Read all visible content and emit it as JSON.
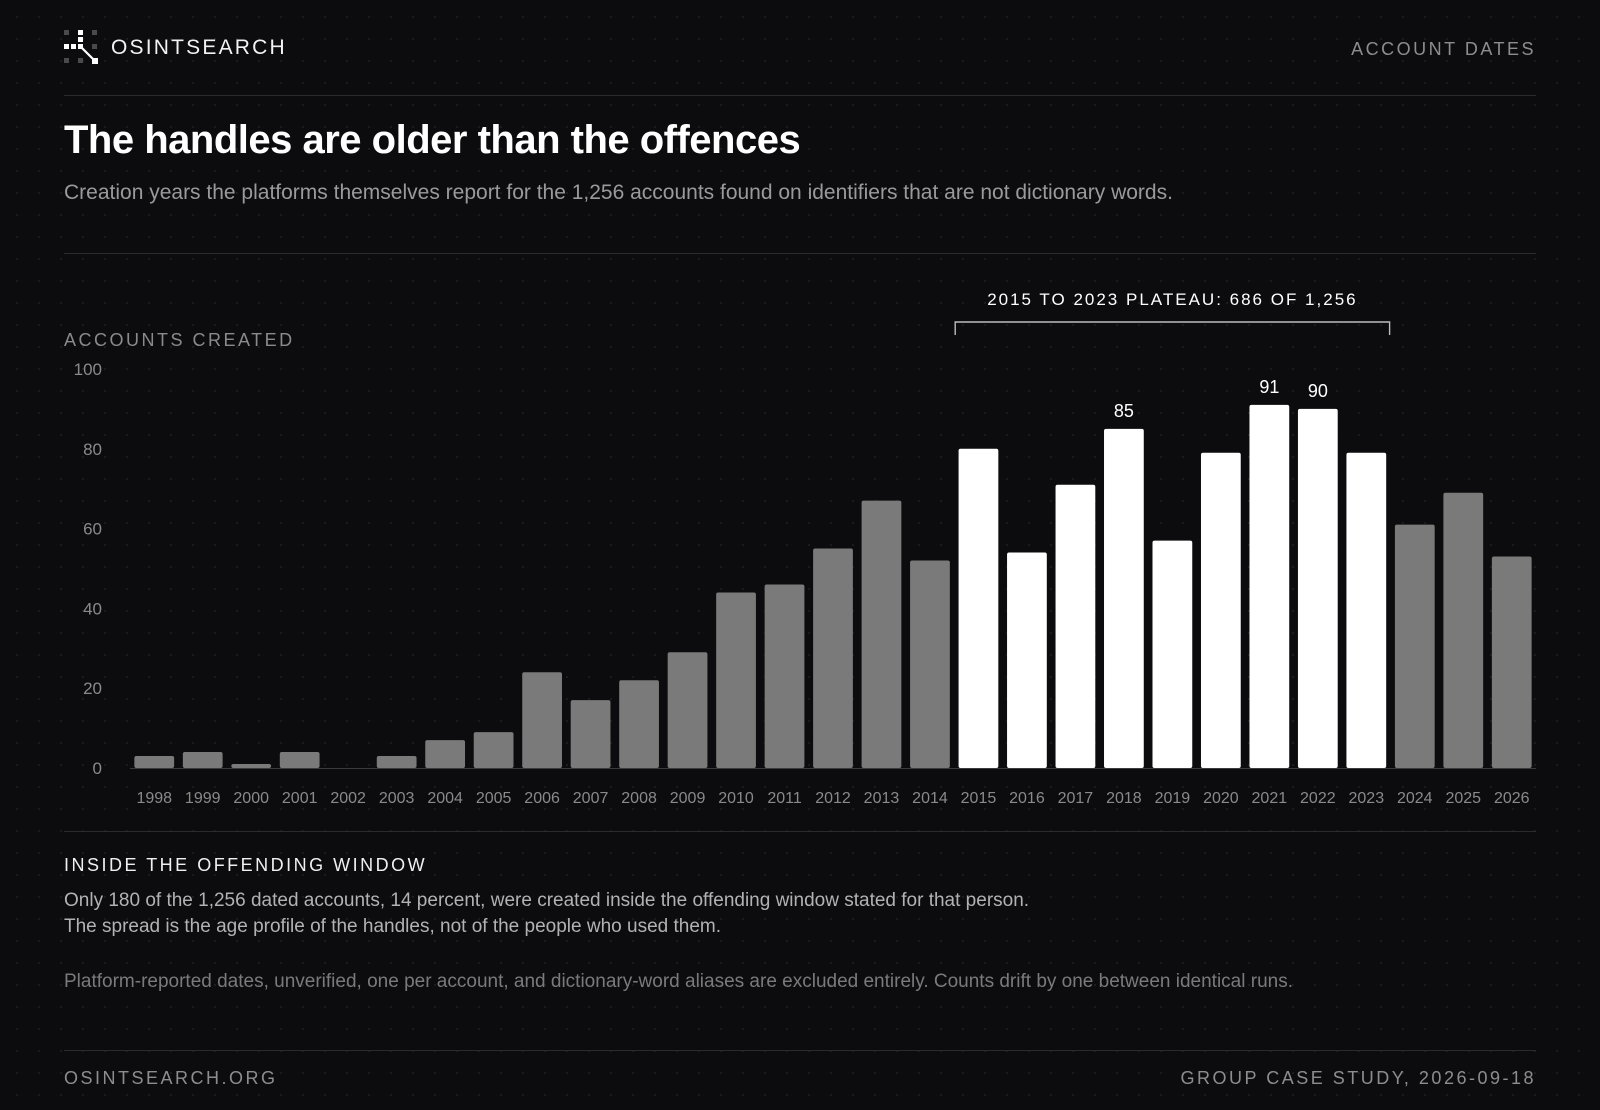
{
  "header": {
    "brand": "OSINTSEARCH",
    "section": "ACCOUNT DATES"
  },
  "title": "The handles are older than the offences",
  "subtitle": "Creation years the platforms themselves report for the 1,256 accounts found on identifiers that are not dictionary words.",
  "chart_data": {
    "type": "bar",
    "title": "The handles are older than the offences",
    "xlabel": "",
    "ylabel": "ACCOUNTS CREATED",
    "ylim": [
      0,
      100
    ],
    "yticks": [
      0,
      20,
      40,
      60,
      80,
      100
    ],
    "grid": false,
    "categories": [
      "1998",
      "1999",
      "2000",
      "2001",
      "2002",
      "2003",
      "2004",
      "2005",
      "2006",
      "2007",
      "2008",
      "2009",
      "2010",
      "2011",
      "2012",
      "2013",
      "2014",
      "2015",
      "2016",
      "2017",
      "2018",
      "2019",
      "2020",
      "2021",
      "2022",
      "2023",
      "2024",
      "2025",
      "2026"
    ],
    "values": [
      3,
      4,
      1,
      4,
      0,
      3,
      7,
      9,
      24,
      17,
      22,
      29,
      44,
      46,
      55,
      67,
      52,
      80,
      54,
      71,
      85,
      57,
      79,
      91,
      90,
      79,
      61,
      69,
      53
    ],
    "highlight_range": [
      "2015",
      "2023"
    ],
    "data_labels": [
      {
        "category": "2018",
        "value": 85,
        "text": "85"
      },
      {
        "category": "2021",
        "value": 91,
        "text": "91"
      },
      {
        "category": "2022",
        "value": 90,
        "text": "90"
      }
    ],
    "annotation": {
      "text": "2015 TO 2023 PLATEAU: 686 OF 1,256",
      "from": "2015",
      "to": "2023"
    },
    "colors": {
      "base": "#7a7a7a",
      "highlight": "#ffffff",
      "axis_text": "#8a8a8a",
      "bracket": "#bdbdbd"
    }
  },
  "inside": {
    "title": "INSIDE THE OFFENDING WINDOW",
    "line1": "Only 180 of the 1,256 dated accounts, 14 percent, were created inside the offending window stated for that person.",
    "line2": "The spread is the age profile of the handles, not of the people who used them."
  },
  "note": "Platform-reported dates, unverified, one per account, and dictionary-word aliases are excluded entirely. Counts drift by one between identical runs.",
  "footer": {
    "left": "OSINTSEARCH.ORG",
    "right": "GROUP CASE STUDY, 2026-09-18"
  }
}
